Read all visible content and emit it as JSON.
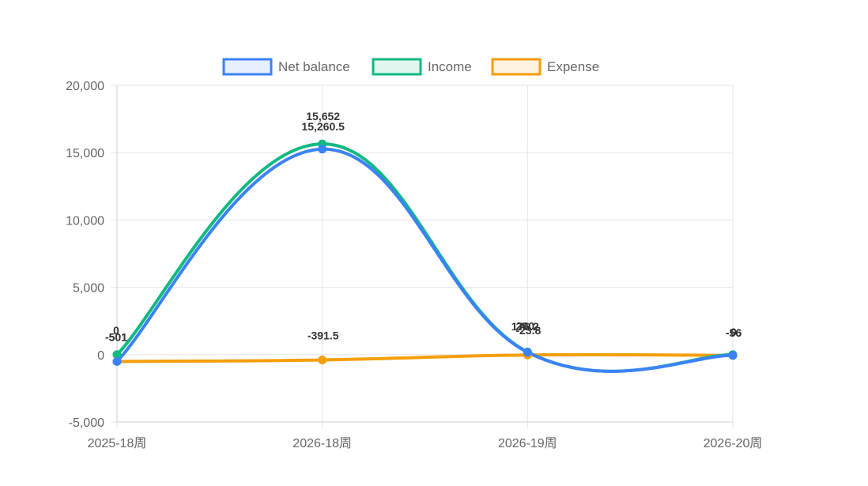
{
  "chart_data": {
    "type": "line",
    "categories": [
      "2025-18周",
      "2026-18周",
      "2026-19周",
      "2026-20周"
    ],
    "series": [
      {
        "name": "Net balance",
        "values": [
          -501,
          15260.5,
          176.2,
          -56
        ],
        "color": "#3b82f6",
        "labels": [
          "-501",
          "15,260.5",
          "176.2",
          "-56"
        ]
      },
      {
        "name": "Income",
        "values": [
          0,
          15652,
          200,
          0
        ],
        "color": "#10b981",
        "labels": [
          "0",
          "15,652",
          "200",
          "0"
        ]
      },
      {
        "name": "Expense",
        "values": [
          -501,
          -391.5,
          -23.8,
          -56
        ],
        "color": "#f59e0b",
        "labels": [
          "-501",
          "-391.5",
          "-23.8",
          "-56"
        ]
      }
    ],
    "ylim": [
      -5000,
      20000
    ],
    "yticks": [
      {
        "value": 20000,
        "label": "20,000"
      },
      {
        "value": 15000,
        "label": "15,000"
      },
      {
        "value": 10000,
        "label": "10,000"
      },
      {
        "value": 5000,
        "label": "5,000"
      },
      {
        "value": 0,
        "label": "0"
      },
      {
        "value": -5000,
        "label": "-5,000"
      }
    ],
    "grid": true,
    "legend_position": "top"
  }
}
